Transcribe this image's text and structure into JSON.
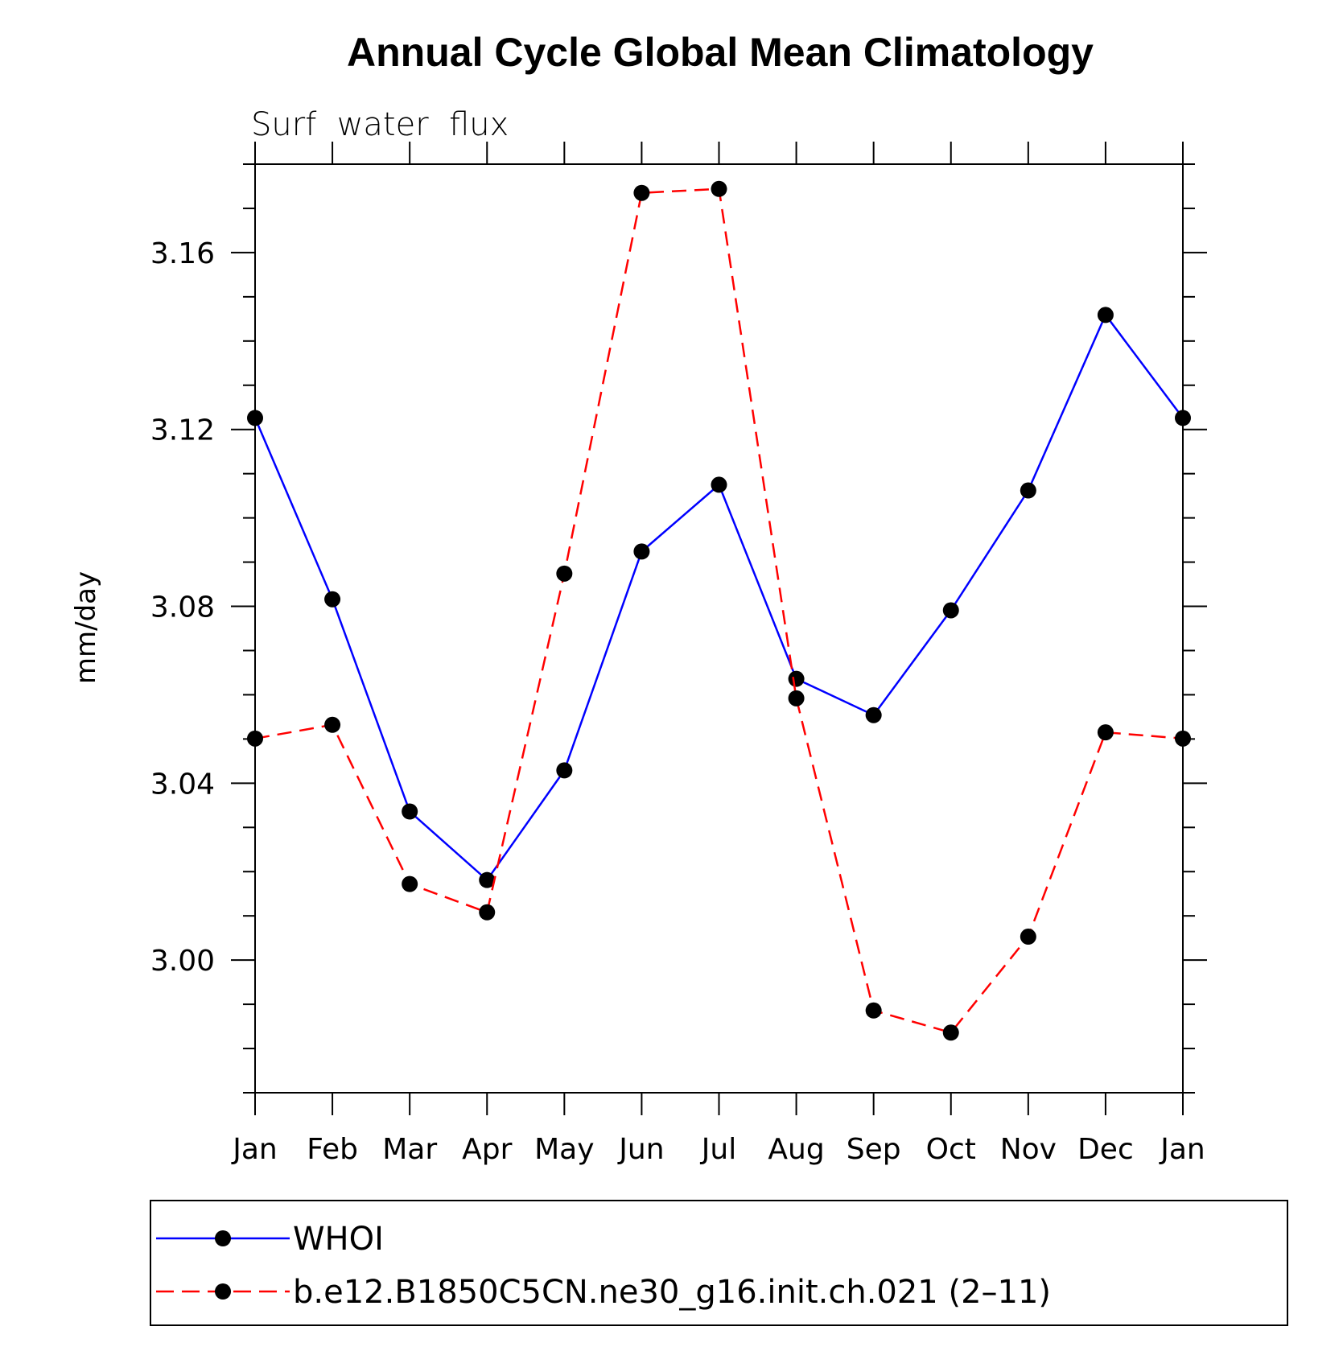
{
  "chart_data": {
    "type": "line",
    "title": "Annual Cycle Global Mean Climatology",
    "subtitle": "Surf  water  flux",
    "ylabel": "mm/day",
    "xlabel": "",
    "categories": [
      "Jan",
      "Feb",
      "Mar",
      "Apr",
      "May",
      "Jun",
      "Jul",
      "Aug",
      "Sep",
      "Oct",
      "Nov",
      "Dec",
      "Jan"
    ],
    "ylim": [
      2.97,
      3.18
    ],
    "yticks": [
      "3.00",
      "3.04",
      "3.08",
      "3.12",
      "3.16"
    ],
    "ytick_values": [
      3.0,
      3.04,
      3.08,
      3.12,
      3.16
    ],
    "series": [
      {
        "name": "WHOI",
        "color": "#0000ff",
        "style": "solid",
        "marker": "filled-circle",
        "values": [
          3.1226,
          3.0816,
          3.0336,
          3.0181,
          3.0429,
          3.0924,
          3.1075,
          3.0636,
          3.0554,
          3.0791,
          3.1062,
          3.1459,
          3.1226
        ]
      },
      {
        "name": "b.e12.B1850C5CN.ne30_g16.init.ch.021 (2–11)",
        "color": "#ff0000",
        "style": "dashed",
        "marker": "filled-circle",
        "values": [
          3.0501,
          3.0532,
          3.0172,
          3.0108,
          3.0874,
          3.1735,
          3.1744,
          3.0592,
          2.9886,
          2.9836,
          3.0053,
          3.0515,
          3.0501
        ]
      }
    ],
    "grid": false,
    "legend_position": "bottom"
  }
}
